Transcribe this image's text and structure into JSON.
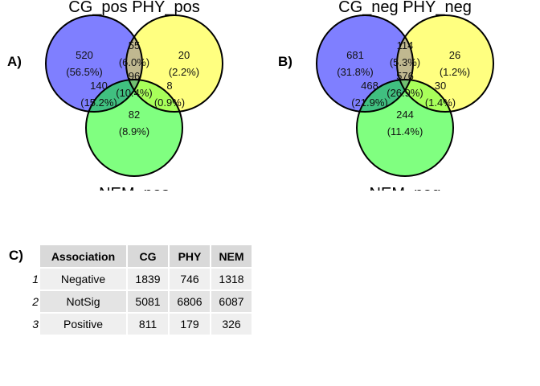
{
  "panels": {
    "a": {
      "label": "A)",
      "set_titles": [
        "CG_pos",
        "PHY_pos",
        "NEM_pos"
      ],
      "regions": {
        "cg_only": {
          "count": "520",
          "pct": "(56.5%)"
        },
        "cg_phy": {
          "count": "55",
          "pct": "(6.0%)"
        },
        "phy_only": {
          "count": "20",
          "pct": "(2.2%)"
        },
        "cg_nem": {
          "count": "140",
          "pct": "(15.2%)"
        },
        "all": {
          "count": "96",
          "pct": "(10.4%)"
        },
        "phy_nem": {
          "count": "8",
          "pct": "(0.9%)"
        },
        "nem_only": {
          "count": "82",
          "pct": "(8.9%)"
        }
      }
    },
    "b": {
      "label": "B)",
      "set_titles": [
        "CG_neg",
        "PHY_neg",
        "NEM_neg"
      ],
      "regions": {
        "cg_only": {
          "count": "681",
          "pct": "(31.8%)"
        },
        "cg_phy": {
          "count": "114",
          "pct": "(5.3%)"
        },
        "phy_only": {
          "count": "26",
          "pct": "(1.2%)"
        },
        "cg_nem": {
          "count": "468",
          "pct": "(21.9%)"
        },
        "all": {
          "count": "576",
          "pct": "(26.9%)"
        },
        "phy_nem": {
          "count": "30",
          "pct": "(1.4%)"
        },
        "nem_only": {
          "count": "244",
          "pct": "(11.4%)"
        }
      }
    }
  },
  "colors": {
    "cg": "#7f7fff",
    "phy": "#ffff80",
    "nem": "#80ff80",
    "cg_phy": "#c0b890",
    "cg_nem": "#40c080",
    "phy_nem": "#a8ff5a",
    "all": "#70c070"
  },
  "table": {
    "label": "C)",
    "headers": [
      "Association",
      "CG",
      "PHY",
      "NEM"
    ],
    "rows": [
      {
        "num": "1",
        "cells": [
          "Negative",
          "1839",
          "746",
          "1318"
        ]
      },
      {
        "num": "2",
        "cells": [
          "NotSig",
          "5081",
          "6806",
          "6087"
        ]
      },
      {
        "num": "3",
        "cells": [
          "Positive",
          "811",
          "179",
          "326"
        ]
      }
    ]
  }
}
